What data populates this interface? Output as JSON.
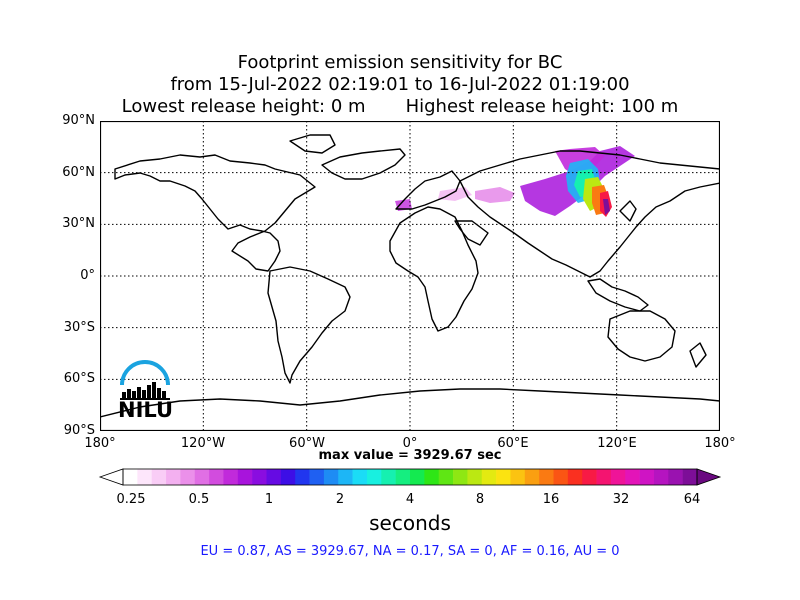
{
  "title": {
    "line1": "Footprint emission sensitivity for BC",
    "line2": "from 15-Jul-2022 02:19:01 to 16-Jul-2022 01:19:00",
    "line3": "Lowest release height: 0 m       Highest release height: 100 m"
  },
  "axes": {
    "lat_ticks": [
      "90°N",
      "60°N",
      "30°N",
      "0°",
      "30°S",
      "60°S",
      "90°S"
    ],
    "lon_ticks": [
      "180°",
      "120°W",
      "60°W",
      "0°",
      "60°E",
      "120°E",
      "180°"
    ]
  },
  "max_value_text": "max value = 3929.67 sec",
  "colorbar": {
    "ticks": [
      "0.25",
      "0.5",
      "1",
      "2",
      "4",
      "8",
      "16",
      "32",
      "64"
    ],
    "unit": "seconds",
    "colors": [
      "#ffffff",
      "#fde6fb",
      "#f9cdf6",
      "#f3b0f0",
      "#eb90ea",
      "#e06fe4",
      "#d24cde",
      "#c12adb",
      "#a814dc",
      "#8a0de0",
      "#660be3",
      "#3d0ee6",
      "#2136ef",
      "#1f60f2",
      "#1e8cf4",
      "#1db6f6",
      "#1bdcf6",
      "#18f0e0",
      "#16f0b0",
      "#15ee80",
      "#14ea50",
      "#2ee616",
      "#5fe614",
      "#8ee713",
      "#bbe812",
      "#e3ea11",
      "#fbe311",
      "#fbc311",
      "#fa9f11",
      "#fa7a12",
      "#fa5514",
      "#fa3020",
      "#f81a45",
      "#f41470",
      "#ef1498",
      "#e314b8",
      "#cf14c4",
      "#b514c0",
      "#9a12b0",
      "#7d0e98"
    ]
  },
  "regions": "EU = 0.87,  AS = 3929.67,  NA = 0.17,  SA = 0,  AF = 0.16,  AU = 0",
  "logo": {
    "text": "NILU"
  }
}
